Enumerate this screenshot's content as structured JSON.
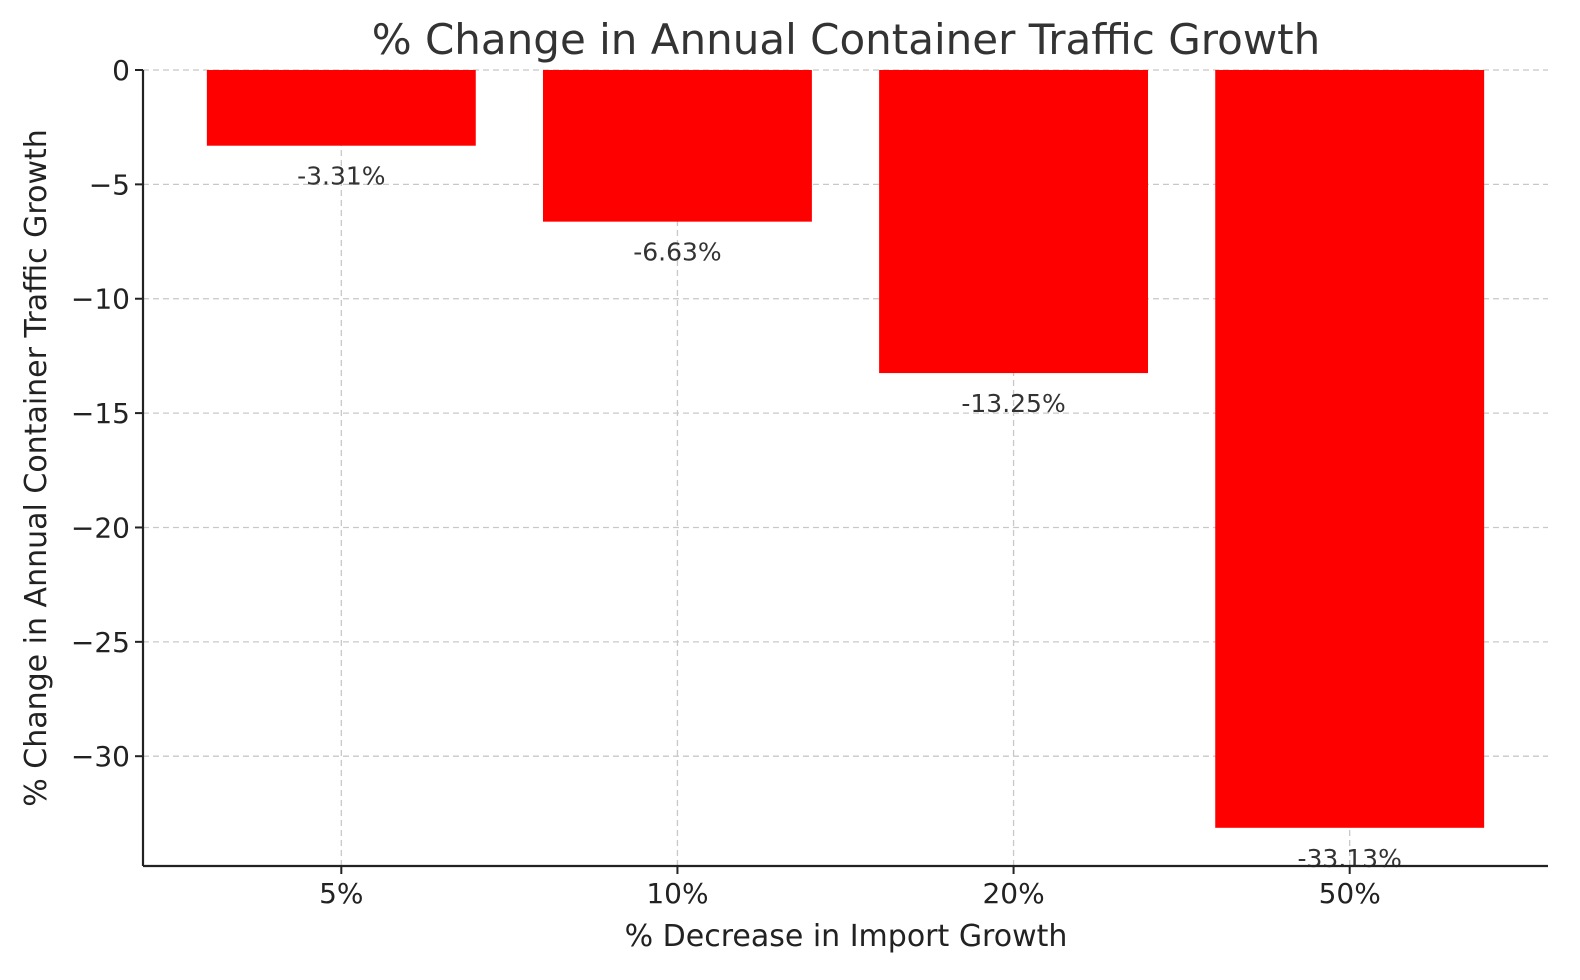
{
  "chart_data": {
    "type": "bar",
    "title": "% Change in Annual Container Traffic Growth",
    "xlabel": "% Decrease in Import Growth",
    "ylabel": "% Change in Annual Container Traffic Growth",
    "categories": [
      "5%",
      "10%",
      "20%",
      "50%"
    ],
    "values": [
      -3.31,
      -6.63,
      -13.25,
      -33.13
    ],
    "data_labels": [
      "-3.31%",
      "-6.63%",
      "-13.25%",
      "-33.13%"
    ],
    "yticks": [
      0,
      -5,
      -10,
      -15,
      -20,
      -25,
      -30
    ],
    "ytick_labels": [
      "0",
      "−5",
      "−10",
      "−15",
      "−20",
      "−25",
      "−30"
    ],
    "ylim": [
      -34.8,
      0
    ],
    "grid": true,
    "bar_color": "#ff0000"
  }
}
